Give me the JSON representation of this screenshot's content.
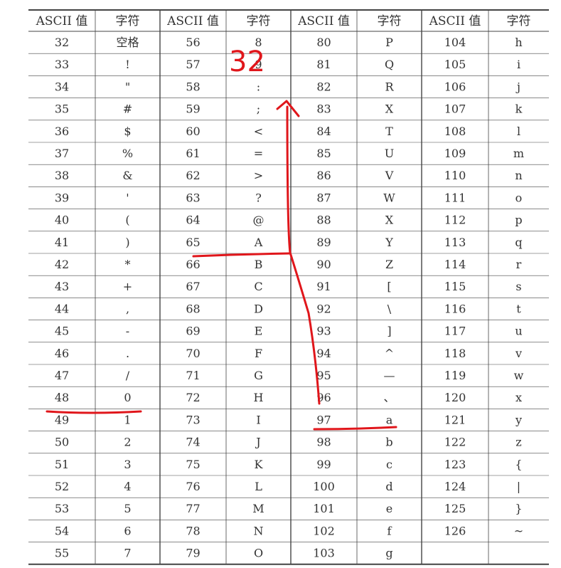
{
  "table": {
    "headers": [
      "ASCII 值",
      "字符",
      "ASCII 值",
      "字符",
      "ASCII 值",
      "字符",
      "ASCII 值",
      "字符"
    ],
    "rows": [
      [
        "32",
        "空格",
        "56",
        "8",
        "80",
        "P",
        "104",
        "h"
      ],
      [
        "33",
        "!",
        "57",
        "9",
        "81",
        "Q",
        "105",
        "i"
      ],
      [
        "34",
        "\"",
        "58",
        ":",
        "82",
        "R",
        "106",
        "j"
      ],
      [
        "35",
        "#",
        "59",
        ";",
        "83",
        "X",
        "107",
        "k"
      ],
      [
        "36",
        "$",
        "60",
        "<",
        "84",
        "T",
        "108",
        "l"
      ],
      [
        "37",
        "%",
        "61",
        "=",
        "85",
        "U",
        "109",
        "m"
      ],
      [
        "38",
        "&",
        "62",
        ">",
        "86",
        "V",
        "110",
        "n"
      ],
      [
        "39",
        "'",
        "63",
        "?",
        "87",
        "W",
        "111",
        "o"
      ],
      [
        "40",
        "(",
        "64",
        "@",
        "88",
        "X",
        "112",
        "p"
      ],
      [
        "41",
        ")",
        "65",
        "A",
        "89",
        "Y",
        "113",
        "q"
      ],
      [
        "42",
        "*",
        "66",
        "B",
        "90",
        "Z",
        "114",
        "r"
      ],
      [
        "43",
        "+",
        "67",
        "C",
        "91",
        "[",
        "115",
        "s"
      ],
      [
        "44",
        ",",
        "68",
        "D",
        "92",
        "\\",
        "116",
        "t"
      ],
      [
        "45",
        "-",
        "69",
        "E",
        "93",
        "]",
        "117",
        "u"
      ],
      [
        "46",
        ".",
        "70",
        "F",
        "94",
        "^",
        "118",
        "v"
      ],
      [
        "47",
        "/",
        "71",
        "G",
        "95",
        "—",
        "119",
        "w"
      ],
      [
        "48",
        "0",
        "72",
        "H",
        "96",
        "、",
        "120",
        "x"
      ],
      [
        "49",
        "1",
        "73",
        "I",
        "97",
        "a",
        "121",
        "y"
      ],
      [
        "50",
        "2",
        "74",
        "J",
        "98",
        "b",
        "122",
        "z"
      ],
      [
        "51",
        "3",
        "75",
        "K",
        "99",
        "c",
        "123",
        "{"
      ],
      [
        "52",
        "4",
        "76",
        "L",
        "100",
        "d",
        "124",
        "|"
      ],
      [
        "53",
        "5",
        "77",
        "M",
        "101",
        "e",
        "125",
        "}"
      ],
      [
        "54",
        "6",
        "78",
        "N",
        "102",
        "f",
        "126",
        "~"
      ],
      [
        "55",
        "7",
        "79",
        "O",
        "103",
        "g",
        "",
        ""
      ]
    ]
  },
  "annotation": {
    "text": "32",
    "color": "#e0161b"
  }
}
